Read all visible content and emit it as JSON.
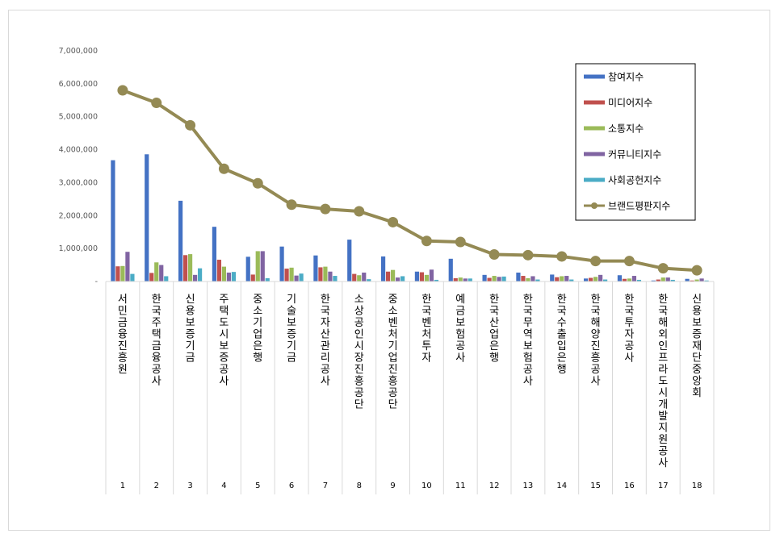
{
  "chart_data": {
    "type": "bar",
    "title": "",
    "xlabel": "",
    "ylabel": "",
    "ylim": [
      0,
      7000000
    ],
    "y_ticks": [
      "-",
      "1,000,000",
      "2,000,000",
      "3,000,000",
      "4,000,000",
      "5,000,000",
      "6,000,000",
      "7,000,000"
    ],
    "categories": [
      "서민금융진흥원",
      "한국주택금융공사",
      "신용보증기금",
      "주택도시보증공사",
      "중소기업은행",
      "기술보증기금",
      "한국자산관리공사",
      "소상공인시장진흥공단",
      "중소벤처기업진흥공단",
      "한국벤처투자",
      "예금보험공사",
      "한국산업은행",
      "한국무역보험공사",
      "한국수출입은행",
      "한국해양진흥공사",
      "한국투자공사",
      "한국해외인프라도시개발지원공사",
      "신용보증재단중앙회"
    ],
    "rank_numbers": [
      "1",
      "2",
      "3",
      "4",
      "5",
      "6",
      "7",
      "8",
      "9",
      "10",
      "11",
      "12",
      "13",
      "14",
      "15",
      "16",
      "17",
      "18"
    ],
    "series": [
      {
        "name": "참여지수",
        "color": "#4472C4",
        "kind": "bar",
        "values": [
          3680000,
          3860000,
          2450000,
          1660000,
          750000,
          1060000,
          790000,
          1270000,
          760000,
          300000,
          690000,
          200000,
          270000,
          210000,
          90000,
          190000,
          30000,
          80000
        ]
      },
      {
        "name": "미디어지수",
        "color": "#C0504D",
        "kind": "bar",
        "values": [
          460000,
          260000,
          800000,
          660000,
          210000,
          390000,
          430000,
          230000,
          300000,
          280000,
          100000,
          110000,
          170000,
          130000,
          110000,
          80000,
          60000,
          30000
        ]
      },
      {
        "name": "소통지수",
        "color": "#9BBB59",
        "kind": "bar",
        "values": [
          470000,
          580000,
          830000,
          450000,
          920000,
          420000,
          450000,
          190000,
          350000,
          200000,
          120000,
          170000,
          100000,
          160000,
          140000,
          90000,
          120000,
          60000
        ]
      },
      {
        "name": "커뮤니티지수",
        "color": "#8064A2",
        "kind": "bar",
        "values": [
          900000,
          500000,
          200000,
          270000,
          920000,
          180000,
          300000,
          270000,
          120000,
          360000,
          90000,
          140000,
          160000,
          170000,
          200000,
          170000,
          120000,
          90000
        ]
      },
      {
        "name": "사회공헌지수",
        "color": "#4BACC6",
        "kind": "bar",
        "values": [
          230000,
          160000,
          400000,
          290000,
          100000,
          240000,
          170000,
          70000,
          160000,
          50000,
          90000,
          150000,
          60000,
          60000,
          60000,
          50000,
          50000,
          30000
        ]
      },
      {
        "name": "브랜드평판지수",
        "color": "#948A54",
        "kind": "line",
        "values": [
          5800000,
          5420000,
          4740000,
          3420000,
          2980000,
          2330000,
          2200000,
          2130000,
          1800000,
          1230000,
          1200000,
          820000,
          800000,
          760000,
          620000,
          620000,
          400000,
          340000
        ]
      }
    ],
    "legend_position": "top-right",
    "grid": false
  }
}
